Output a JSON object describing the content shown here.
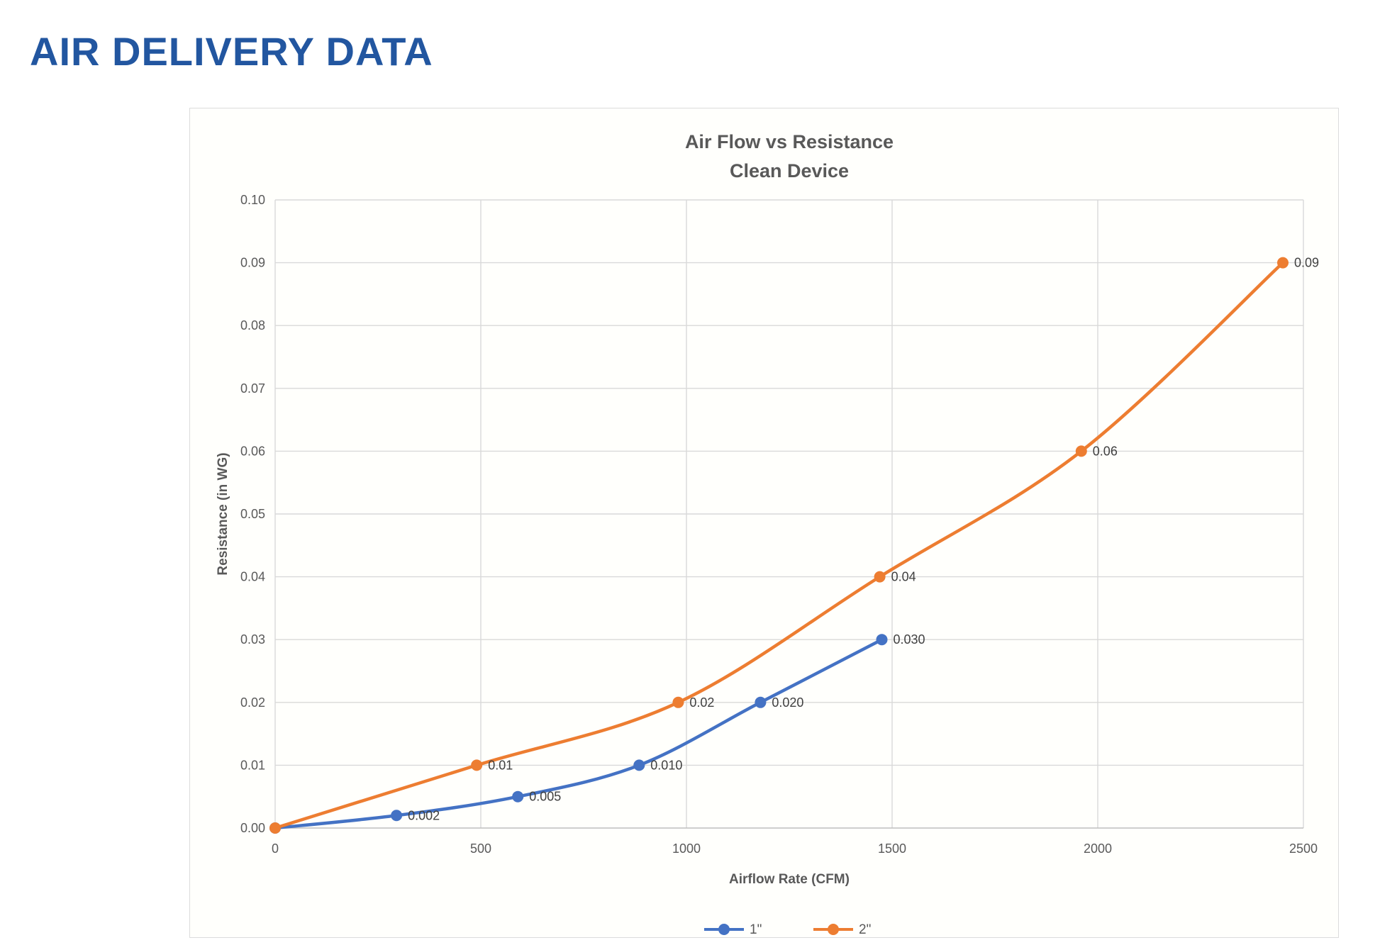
{
  "page": {
    "heading": "AIR DELIVERY DATA",
    "heading_color": "#2256a0"
  },
  "chart_data": {
    "type": "line",
    "title": "Air Flow vs Resistance",
    "subtitle": "Clean Device",
    "xlabel": "Airflow Rate (CFM)",
    "ylabel": "Resistance (in WG)",
    "xlim": [
      0,
      2500
    ],
    "ylim": [
      0,
      0.1
    ],
    "x_tick_values": [
      0,
      500,
      1000,
      1500,
      2000,
      2500
    ],
    "x_tick_labels": [
      "0",
      "500",
      "1000",
      "1500",
      "2000",
      "2500"
    ],
    "y_tick_values": [
      0,
      0.01,
      0.02,
      0.03,
      0.04,
      0.05,
      0.06,
      0.07,
      0.08,
      0.09,
      0.1
    ],
    "y_tick_labels": [
      "0.00",
      "0.01",
      "0.02",
      "0.03",
      "0.04",
      "0.05",
      "0.06",
      "0.07",
      "0.08",
      "0.09",
      "0.10"
    ],
    "grid": true,
    "legend_position": "bottom",
    "colors": {
      "grid": "#d9d9d9",
      "axis": "#bfbfbf",
      "tick_text": "#595959",
      "title_text": "#595959",
      "label_text": "#404040"
    },
    "series": [
      {
        "name": "1\"",
        "color": "#4472C4",
        "x": [
          0,
          295,
          590,
          885,
          1180,
          1475
        ],
        "y": [
          0,
          0.002,
          0.005,
          0.01,
          0.02,
          0.03
        ],
        "point_labels": [
          "",
          "0.002",
          "0.005",
          "0.010",
          "0.020",
          "0.030"
        ]
      },
      {
        "name": "2\"",
        "color": "#ED7D31",
        "x": [
          0,
          490,
          980,
          1470,
          1960,
          2450
        ],
        "y": [
          0,
          0.01,
          0.02,
          0.04,
          0.06,
          0.09
        ],
        "point_labels": [
          "",
          "0.01",
          "0.02",
          "0.04",
          "0.06",
          "0.09"
        ]
      }
    ]
  }
}
